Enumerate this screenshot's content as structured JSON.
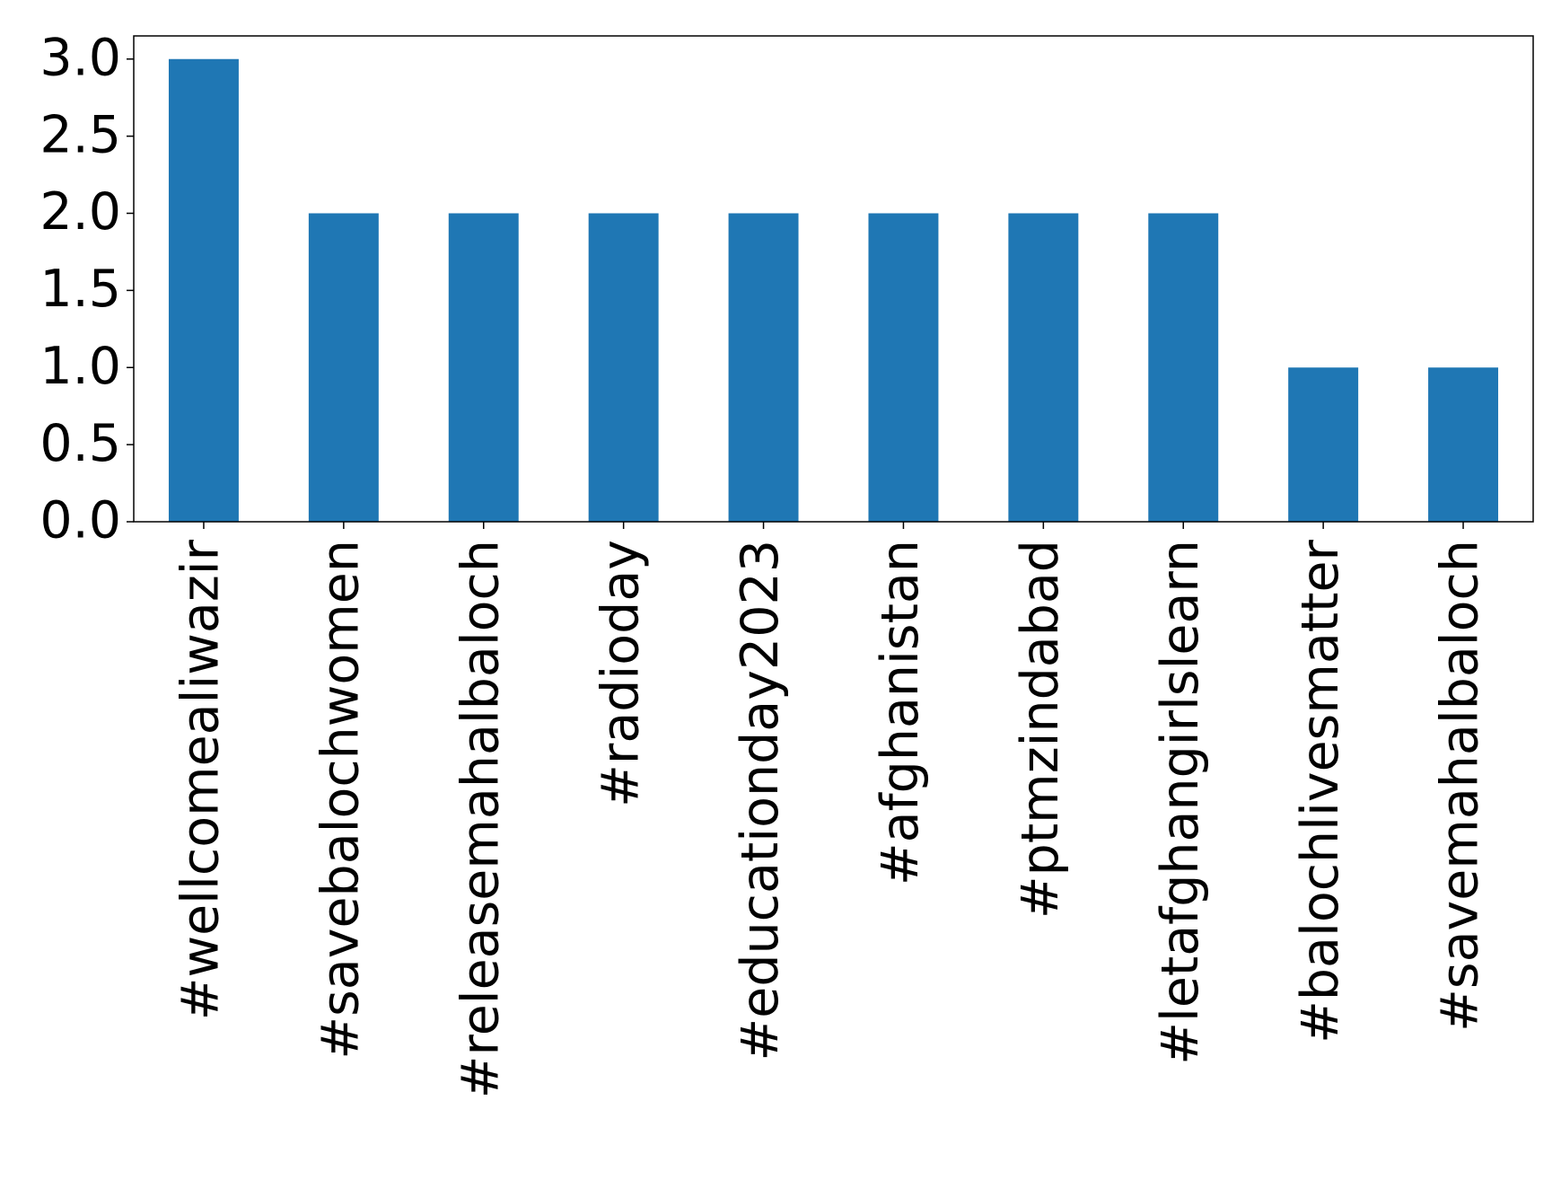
{
  "chart_data": {
    "type": "bar",
    "categories": [
      "#wellcomealiwazir",
      "#savebalochwomen",
      "#releasemahalbaloch",
      "#radioday",
      "#educationday2023",
      "#afghanistan",
      "#ptmzindabad",
      "#letafghangirlslearn",
      "#balochlivesmatter",
      "#savemahalbaloch"
    ],
    "values": [
      3,
      2,
      2,
      2,
      2,
      2,
      2,
      2,
      1,
      1
    ],
    "color": "#1f77b4",
    "ylim": [
      0,
      3.15
    ],
    "yticks": [
      {
        "value": 0,
        "label": "0.0"
      },
      0.5,
      {
        "value": 1,
        "label": "1.0"
      },
      1.5,
      {
        "value": 2,
        "label": "2.0"
      },
      2.5,
      {
        "value": 3,
        "label": "3.0"
      }
    ],
    "grid": false
  }
}
